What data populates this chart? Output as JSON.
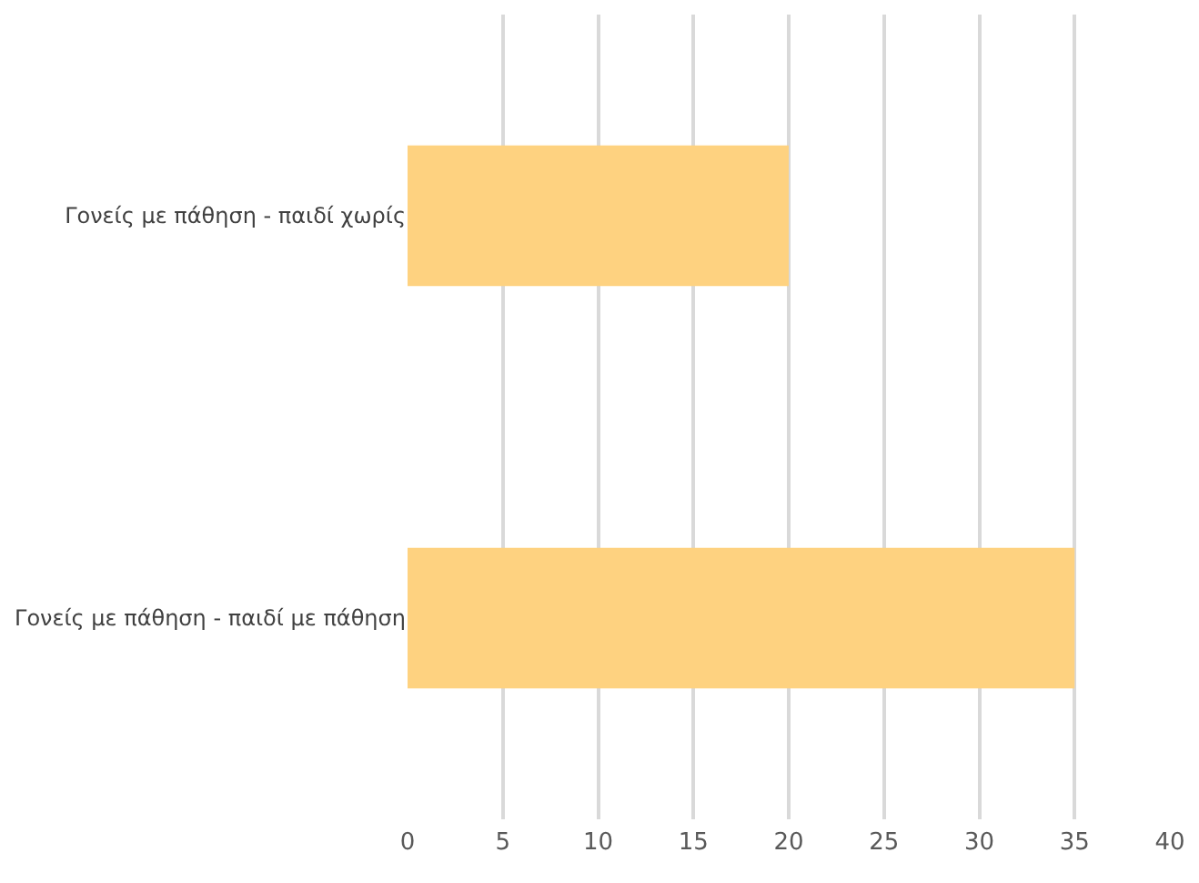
{
  "chart_data": {
    "type": "bar",
    "orientation": "horizontal",
    "categories": [
      "Γονείς με πάθηση - παιδί χωρίς",
      "Γονείς με πάθηση - παιδί με πάθηση"
    ],
    "values": [
      20,
      35
    ],
    "color": "#fed280",
    "xlim": [
      0,
      40
    ],
    "xticks": [
      0,
      5,
      10,
      15,
      20,
      25,
      30,
      35,
      40
    ],
    "grid": "x",
    "legend": false
  }
}
